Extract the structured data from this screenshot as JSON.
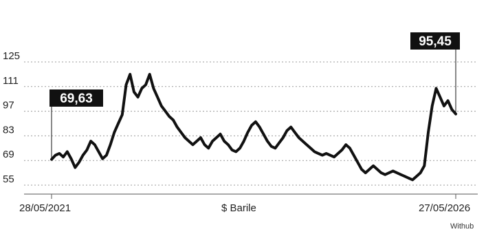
{
  "chart_data": {
    "type": "line",
    "xlabel": "$ Barile",
    "x_start_label": "28/05/2021",
    "x_end_label": "27/05/2026",
    "source": "Withub",
    "y_ticks": [
      "125",
      "111",
      "97",
      "83",
      "69",
      "55"
    ],
    "ylim": [
      53,
      125
    ],
    "grid": "horizontal dotted",
    "callouts": [
      {
        "label": "69,63",
        "anchor": "start"
      },
      {
        "label": "95,45",
        "anchor": "end"
      }
    ],
    "series": [
      {
        "color": "#111111",
        "points": [
          [
            0,
            69.63
          ],
          [
            0.3,
            72
          ],
          [
            0.6,
            73
          ],
          [
            0.9,
            71
          ],
          [
            1.2,
            74
          ],
          [
            1.5,
            70
          ],
          [
            1.8,
            65
          ],
          [
            2.1,
            68
          ],
          [
            2.4,
            72
          ],
          [
            2.7,
            75
          ],
          [
            3.0,
            80
          ],
          [
            3.3,
            78
          ],
          [
            3.6,
            74
          ],
          [
            3.9,
            70
          ],
          [
            4.2,
            72
          ],
          [
            4.5,
            78
          ],
          [
            4.8,
            85
          ],
          [
            5.1,
            90
          ],
          [
            5.4,
            95
          ],
          [
            5.7,
            112
          ],
          [
            6.0,
            118
          ],
          [
            6.3,
            108
          ],
          [
            6.6,
            105
          ],
          [
            6.9,
            110
          ],
          [
            7.2,
            112
          ],
          [
            7.5,
            118
          ],
          [
            7.8,
            110
          ],
          [
            8.1,
            105
          ],
          [
            8.4,
            100
          ],
          [
            8.7,
            97
          ],
          [
            9.0,
            94
          ],
          [
            9.3,
            92
          ],
          [
            9.6,
            88
          ],
          [
            9.9,
            85
          ],
          [
            10.2,
            82
          ],
          [
            10.5,
            80
          ],
          [
            10.8,
            78
          ],
          [
            11.1,
            80
          ],
          [
            11.4,
            82
          ],
          [
            11.7,
            78
          ],
          [
            12.0,
            76
          ],
          [
            12.3,
            80
          ],
          [
            12.6,
            82
          ],
          [
            12.9,
            84
          ],
          [
            13.2,
            80
          ],
          [
            13.5,
            78
          ],
          [
            13.8,
            75
          ],
          [
            14.1,
            74
          ],
          [
            14.4,
            76
          ],
          [
            14.7,
            80
          ],
          [
            15.0,
            85
          ],
          [
            15.3,
            89
          ],
          [
            15.6,
            91
          ],
          [
            15.9,
            88
          ],
          [
            16.2,
            84
          ],
          [
            16.5,
            80
          ],
          [
            16.8,
            77
          ],
          [
            17.1,
            76
          ],
          [
            17.4,
            79
          ],
          [
            17.7,
            82
          ],
          [
            18.0,
            86
          ],
          [
            18.3,
            88
          ],
          [
            18.6,
            85
          ],
          [
            18.9,
            82
          ],
          [
            19.2,
            80
          ],
          [
            19.5,
            78
          ],
          [
            19.8,
            76
          ],
          [
            20.1,
            74
          ],
          [
            20.4,
            73
          ],
          [
            20.7,
            72
          ],
          [
            21.0,
            73
          ],
          [
            21.3,
            72
          ],
          [
            21.6,
            71
          ],
          [
            21.9,
            73
          ],
          [
            22.2,
            75
          ],
          [
            22.5,
            78
          ],
          [
            22.8,
            76
          ],
          [
            23.1,
            72
          ],
          [
            23.4,
            68
          ],
          [
            23.7,
            64
          ],
          [
            24.0,
            62
          ],
          [
            24.3,
            64
          ],
          [
            24.6,
            66
          ],
          [
            24.9,
            64
          ],
          [
            25.2,
            62
          ],
          [
            25.5,
            61
          ],
          [
            25.8,
            62
          ],
          [
            26.1,
            63
          ],
          [
            26.4,
            62
          ],
          [
            26.7,
            61
          ],
          [
            27.0,
            60
          ],
          [
            27.3,
            59
          ],
          [
            27.6,
            58
          ],
          [
            27.9,
            60
          ],
          [
            28.2,
            62
          ],
          [
            28.5,
            66
          ],
          [
            28.8,
            85
          ],
          [
            29.1,
            100
          ],
          [
            29.4,
            110
          ],
          [
            29.7,
            105
          ],
          [
            30.0,
            100
          ],
          [
            30.3,
            103
          ],
          [
            30.6,
            98
          ],
          [
            30.9,
            95.45
          ]
        ]
      }
    ]
  }
}
